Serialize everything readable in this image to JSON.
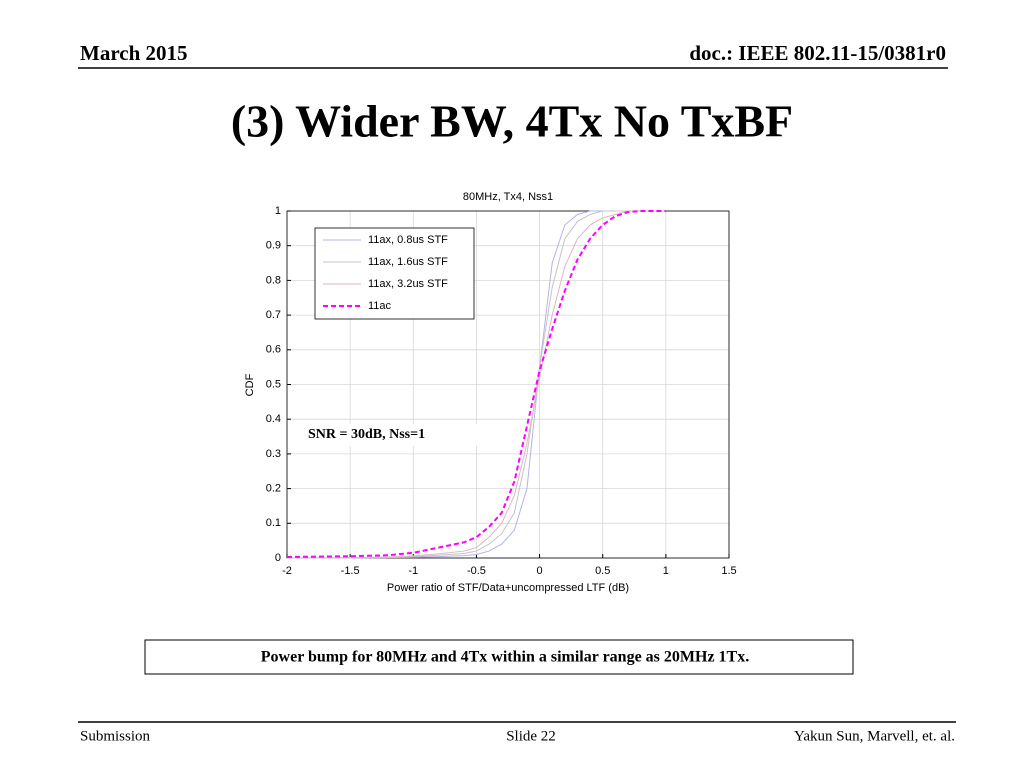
{
  "header": {
    "date": "March 2015",
    "doc": "doc.: IEEE 802.11-15/0381r0"
  },
  "title": "(3) Wider BW, 4Tx No TxBF",
  "chart_data": {
    "type": "line",
    "title": "80MHz, Tx4, Nss1",
    "x_label": "Power ratio of STF/Data+uncompressed LTF (dB)",
    "y_label": "CDF",
    "annotation": "SNR = 30dB, Nss=1",
    "x": [
      -2,
      -1.5,
      -1.2,
      -1,
      -0.8,
      -0.6,
      -0.5,
      -0.4,
      -0.3,
      -0.2,
      -0.1,
      0,
      0.1,
      0.2,
      0.3,
      0.4,
      0.5,
      0.6,
      0.7,
      0.8,
      1
    ],
    "series": [
      {
        "name": "11ax, 0.8us STF",
        "color": "#b4b4e6",
        "style": "solid",
        "values": [
          0,
          0,
          0.001,
          0.002,
          0.004,
          0.007,
          0.01,
          0.02,
          0.04,
          0.08,
          0.2,
          0.55,
          0.85,
          0.96,
          0.99,
          1,
          1,
          1,
          1,
          1,
          1
        ]
      },
      {
        "name": "11ax, 1.6us STF",
        "color": "#c4c4c4",
        "style": "solid",
        "values": [
          0,
          0.001,
          0.002,
          0.004,
          0.008,
          0.013,
          0.02,
          0.04,
          0.07,
          0.13,
          0.3,
          0.55,
          0.78,
          0.92,
          0.97,
          0.99,
          1,
          1,
          1,
          1,
          1
        ]
      },
      {
        "name": "11ax, 3.2us STF",
        "color": "#e2b4c4",
        "style": "solid",
        "values": [
          0,
          0.001,
          0.003,
          0.006,
          0.012,
          0.02,
          0.03,
          0.06,
          0.1,
          0.18,
          0.33,
          0.52,
          0.7,
          0.84,
          0.92,
          0.96,
          0.98,
          0.99,
          1,
          1,
          1
        ]
      },
      {
        "name": "11ac",
        "color": "#ff00ff",
        "style": "dashed",
        "values": [
          0.003,
          0.005,
          0.008,
          0.015,
          0.03,
          0.045,
          0.06,
          0.09,
          0.13,
          0.22,
          0.38,
          0.54,
          0.66,
          0.77,
          0.86,
          0.92,
          0.96,
          0.985,
          0.997,
          1,
          1
        ]
      }
    ],
    "xlim": [
      -2,
      1.5
    ],
    "ylim": [
      0,
      1
    ],
    "xticks": [
      -2,
      -1.5,
      -1,
      -0.5,
      0,
      0.5,
      1,
      1.5
    ],
    "yticks": [
      0,
      0.1,
      0.2,
      0.3,
      0.4,
      0.5,
      0.6,
      0.7,
      0.8,
      0.9,
      1
    ],
    "grid": true,
    "legend": "upper-left"
  },
  "note": "Power bump for 80MHz and 4Tx within a similar range as 20MHz 1Tx.",
  "footer": {
    "left": "Submission",
    "center": "Slide 22",
    "right": "Yakun Sun,  Marvell, et. al."
  }
}
